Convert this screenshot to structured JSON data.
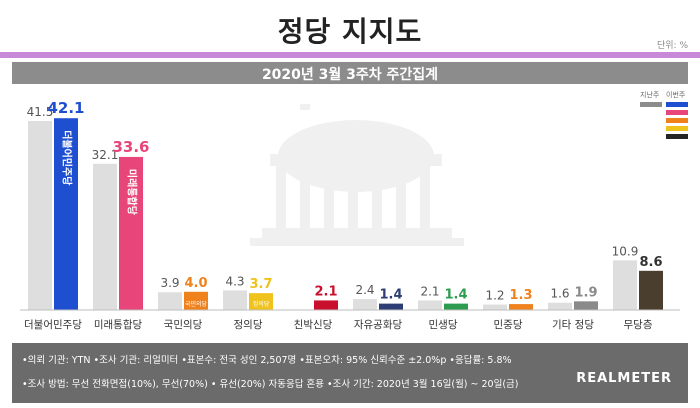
{
  "header": {
    "title": "정당 지지도",
    "unit": "단위: %",
    "subtitle": "2020년 3월 3주차 주간집계"
  },
  "legend": {
    "prev_label": "지난주",
    "curr_label": "이번주",
    "curr_colors": [
      "#1f4fd1",
      "#e8457a",
      "#f0821e",
      "#f0c21c",
      "#252525"
    ]
  },
  "chart_data": {
    "type": "bar",
    "categories": [
      "더불어민주당",
      "미래통합당",
      "국민의당",
      "정의당",
      "친박신당",
      "자유공화당",
      "민생당",
      "민중당",
      "기타 정당",
      "무당층"
    ],
    "series": [
      {
        "name": "지난주",
        "values": [
          41.5,
          32.1,
          3.9,
          4.3,
          null,
          2.4,
          2.1,
          1.2,
          1.6,
          10.9
        ]
      },
      {
        "name": "이번주",
        "values": [
          42.1,
          33.6,
          4.0,
          3.7,
          2.1,
          1.4,
          1.4,
          1.3,
          1.9,
          8.6
        ]
      }
    ],
    "prev_labels": [
      "41.5",
      "32.1",
      "3.9",
      "4.3",
      "",
      "2.4",
      "2.1",
      "1.2",
      "1.6",
      "10.9"
    ],
    "curr_labels": [
      "42.1",
      "33.6",
      "4.0",
      "3.7",
      "2.1",
      "1.4",
      "1.4",
      "1.3",
      "1.9",
      "8.6"
    ],
    "colors": [
      "#1f4fd1",
      "#e8457a",
      "#f0821e",
      "#f0c21c",
      "#c8102e",
      "#2c3e73",
      "#2e9c4e",
      "#f0821e",
      "#8a8a8a",
      "#4a3f2e"
    ],
    "label_colors": [
      "#1f4fd1",
      "#e8457a",
      "#f0821e",
      "#f0c21c",
      "#c8102e",
      "#2c3e73",
      "#2e9c4e",
      "#f0821e",
      "#8a8a8a",
      "#333333"
    ],
    "prev_color": "#dedede",
    "bar_texts": [
      "더불어민주당",
      "미래통합당",
      "국민의당",
      "정의당",
      "",
      "",
      "",
      "",
      "",
      ""
    ],
    "ylim": [
      0,
      45
    ]
  },
  "footer": {
    "line1": "•의뢰 기관: YTN   •조사 기관: 리얼미터   •표본수: 전국 성인 2,507명   •표본오차: 95% 신뢰수준 ±2.0%p   •응답률: 5.8%",
    "line2": "•조사 방법: 무선 전화면접(10%), 무선(70%) • 유선(20%) 자동응답 혼용   •조사 기간: 2020년 3월 16일(월) ~ 20일(금)",
    "brand": "REALMETER"
  }
}
